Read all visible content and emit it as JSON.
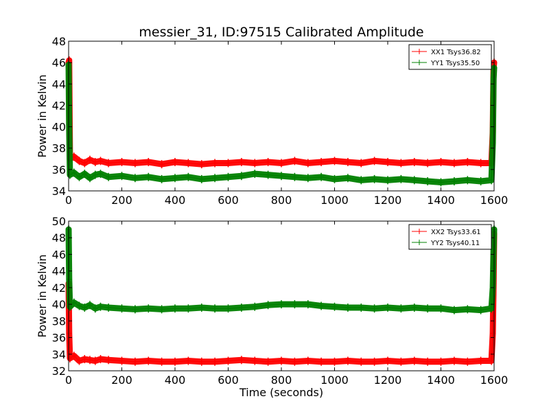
{
  "title": "messier_31, ID:97515 Calibrated Amplitude",
  "colors": {
    "red": "#ff0000",
    "green": "#008000"
  },
  "chart_data": [
    {
      "type": "line",
      "xlabel": "",
      "ylabel": "Power in Kelvin",
      "xlim": [
        0,
        1600
      ],
      "ylim": [
        34,
        48
      ],
      "xticks": [
        "0",
        "200",
        "400",
        "600",
        "800",
        "1000",
        "1200",
        "1400",
        "1600"
      ],
      "yticks": [
        "34",
        "36",
        "38",
        "40",
        "42",
        "44",
        "46",
        "48"
      ],
      "legend_position": "top-right",
      "grid": false,
      "series": [
        {
          "name": "XX1 Tsys36.82",
          "color": "#ff0000",
          "x": [
            0,
            2,
            5,
            20,
            40,
            60,
            80,
            100,
            120,
            150,
            200,
            250,
            300,
            350,
            400,
            450,
            500,
            550,
            600,
            650,
            700,
            750,
            800,
            850,
            900,
            950,
            1000,
            1050,
            1100,
            1150,
            1200,
            1250,
            1300,
            1350,
            1400,
            1450,
            1500,
            1550,
            1590,
            1595,
            1598,
            1600
          ],
          "y": [
            46.0,
            46.2,
            37.0,
            37.2,
            36.8,
            36.6,
            36.9,
            36.7,
            36.8,
            36.6,
            36.7,
            36.6,
            36.7,
            36.5,
            36.7,
            36.6,
            36.5,
            36.6,
            36.6,
            36.7,
            36.6,
            36.7,
            36.6,
            36.8,
            36.6,
            36.7,
            36.8,
            36.7,
            36.6,
            36.8,
            36.7,
            36.6,
            36.7,
            36.6,
            36.7,
            36.6,
            36.7,
            36.6,
            36.6,
            39.5,
            45.5,
            46.0
          ]
        },
        {
          "name": "YY1 Tsys35.50",
          "color": "#008000",
          "x": [
            0,
            2,
            5,
            20,
            40,
            60,
            80,
            100,
            120,
            150,
            200,
            250,
            300,
            350,
            400,
            450,
            500,
            550,
            600,
            650,
            700,
            750,
            800,
            850,
            900,
            950,
            1000,
            1050,
            1100,
            1150,
            1200,
            1250,
            1300,
            1350,
            1400,
            1450,
            1500,
            1550,
            1590,
            1595,
            1598,
            1600
          ],
          "y": [
            45.8,
            40.0,
            35.5,
            35.7,
            35.3,
            35.6,
            35.2,
            35.5,
            35.6,
            35.3,
            35.4,
            35.2,
            35.3,
            35.1,
            35.2,
            35.3,
            35.1,
            35.2,
            35.3,
            35.4,
            35.6,
            35.5,
            35.4,
            35.3,
            35.2,
            35.3,
            35.1,
            35.2,
            35.0,
            35.1,
            35.0,
            35.1,
            35.0,
            34.9,
            34.8,
            34.9,
            35.0,
            34.9,
            35.0,
            38.5,
            44.5,
            45.5
          ]
        }
      ]
    },
    {
      "type": "line",
      "xlabel": "Time (seconds)",
      "ylabel": "Power in Kelvin",
      "xlim": [
        0,
        1600
      ],
      "ylim": [
        32,
        50
      ],
      "xticks": [
        "0",
        "200",
        "400",
        "600",
        "800",
        "1000",
        "1200",
        "1400",
        "1600"
      ],
      "yticks": [
        "32",
        "34",
        "36",
        "38",
        "40",
        "42",
        "44",
        "46",
        "48",
        "50"
      ],
      "legend_position": "top-right",
      "grid": false,
      "series": [
        {
          "name": "XX2 Tsys33.61",
          "color": "#ff0000",
          "x": [
            0,
            2,
            5,
            20,
            40,
            60,
            80,
            100,
            120,
            150,
            200,
            250,
            300,
            350,
            400,
            450,
            500,
            550,
            600,
            650,
            700,
            750,
            800,
            850,
            900,
            950,
            1000,
            1050,
            1100,
            1150,
            1200,
            1250,
            1300,
            1350,
            1400,
            1450,
            1500,
            1550,
            1590,
            1595,
            1598,
            1600
          ],
          "y": [
            42.5,
            36.5,
            33.5,
            33.8,
            33.2,
            33.4,
            33.3,
            33.2,
            33.4,
            33.3,
            33.2,
            33.1,
            33.2,
            33.1,
            33.1,
            33.2,
            33.1,
            33.1,
            33.2,
            33.3,
            33.2,
            33.1,
            33.2,
            33.1,
            33.2,
            33.1,
            33.1,
            33.2,
            33.1,
            33.1,
            33.2,
            33.1,
            33.2,
            33.1,
            33.1,
            33.2,
            33.1,
            33.2,
            33.2,
            36.5,
            42.5,
            48.5
          ]
        },
        {
          "name": "YY2 Tsys40.11",
          "color": "#008000",
          "x": [
            0,
            2,
            5,
            20,
            40,
            60,
            80,
            100,
            120,
            150,
            200,
            250,
            300,
            350,
            400,
            450,
            500,
            550,
            600,
            650,
            700,
            750,
            800,
            850,
            900,
            950,
            1000,
            1050,
            1100,
            1150,
            1200,
            1250,
            1300,
            1350,
            1400,
            1450,
            1500,
            1550,
            1590,
            1595,
            1598,
            1600
          ],
          "y": [
            49.0,
            43.0,
            39.7,
            40.2,
            39.8,
            39.6,
            39.9,
            39.5,
            39.7,
            39.6,
            39.5,
            39.4,
            39.5,
            39.4,
            39.5,
            39.5,
            39.6,
            39.5,
            39.5,
            39.6,
            39.7,
            39.9,
            40.0,
            40.0,
            40.0,
            39.8,
            39.7,
            39.6,
            39.6,
            39.5,
            39.6,
            39.5,
            39.6,
            39.5,
            39.5,
            39.3,
            39.4,
            39.3,
            39.5,
            42.0,
            46.5,
            49.0
          ]
        }
      ]
    }
  ]
}
